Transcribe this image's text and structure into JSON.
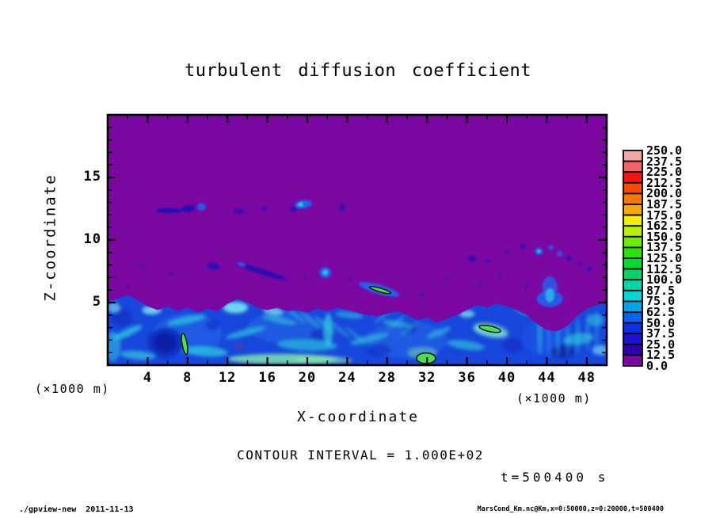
{
  "app": {
    "footer_left": "./gpview-new  2011-11-13",
    "footer_right": "MarsCond_Km.nc@Km,x=0:50000,z=0:20000,t=500400"
  },
  "chart_data": {
    "type": "heatmap",
    "title": "turbulent diffusion coefficient",
    "xlabel": "X-coordinate",
    "ylabel": "Z-coordinate",
    "x_axis_unit": "(×1000 m)",
    "y_axis_unit": "(×1000 m)",
    "contour_note": "CONTOUR INTERVAL = 1.000E+02",
    "time_note": "t=500400 s",
    "xlim": [
      0,
      50
    ],
    "zlim": [
      0,
      20
    ],
    "x_ticks_major": [
      4,
      8,
      12,
      16,
      20,
      24,
      28,
      32,
      36,
      40,
      44,
      48
    ],
    "x_tick_minor_step": 2,
    "z_ticks_major": [
      5,
      10,
      15
    ],
    "z_tick_minor_step": 1,
    "grid": false,
    "legend_position": "right-colorbar",
    "colorbar": {
      "min": 0.0,
      "max": 250.0,
      "step": 12.5,
      "labels_top_to_bottom": [
        "250.0",
        "237.5",
        "225.0",
        "212.5",
        "200.0",
        "187.5",
        "175.0",
        "162.5",
        "150.0",
        "137.5",
        "125.0",
        "112.5",
        "100.0",
        "87.5",
        "75.0",
        "62.5",
        "50.0",
        "37.5",
        "25.0",
        "12.5",
        "0.0"
      ],
      "cell_colors_bottom_to_top": [
        "#7a08a0",
        "#2c00aa",
        "#1a12d4",
        "#0830e8",
        "#0066f2",
        "#00a2ea",
        "#00d6d6",
        "#00d6aa",
        "#00d464",
        "#00dc28",
        "#28e400",
        "#6cec00",
        "#b4f000",
        "#f0f000",
        "#f8a800",
        "#f87800",
        "#f84a00",
        "#f81414",
        "#f86262",
        "#f8a4a4"
      ]
    },
    "palette": {
      "purple": "#7a08a0",
      "layer_base": "#1747dc",
      "blue": "#1e64ee",
      "blue2": "#2f86ee",
      "cyan": "#2fd4de",
      "cyan2": "#7deef0",
      "dark": "#0b28c0",
      "dark2": "#0a1a9e",
      "navy": "#1c10b8",
      "green": "#46e24e",
      "green2": "#86efa6",
      "red": "#c22727",
      "ink": "#101010",
      "frame": "#000000"
    },
    "layer_boundary_z": [
      5.1,
      5.3,
      5.6,
      5.2,
      4.7,
      4.4,
      4.7,
      4.3,
      4.6,
      4.2,
      4.5,
      4.3,
      4.9,
      5.3,
      5.0,
      4.6,
      4.4,
      4.6,
      4.3,
      4.4,
      4.2,
      4.5,
      4.3,
      4.6,
      4.4,
      4.2,
      4.0,
      3.9,
      4.1,
      4.3,
      4.0,
      3.6,
      3.8,
      3.4,
      3.7,
      4.0,
      4.4,
      4.8,
      4.6,
      4.9,
      4.7,
      4.4,
      4.0,
      3.3,
      2.8,
      2.7,
      3.1,
      3.9,
      4.5,
      4.8,
      5.0
    ],
    "features": {
      "layer_texture": [
        [
          8,
          2.5,
          7,
          3.2,
          0,
          "blue2",
          0.3
        ],
        [
          18,
          3,
          8,
          2.6,
          0,
          "blue2",
          0.28
        ],
        [
          30,
          2,
          8,
          3,
          0,
          "blue2",
          0.28
        ],
        [
          44,
          2.3,
          5,
          3,
          0,
          "blue",
          0.3
        ],
        [
          5.8,
          1.8,
          3.6,
          2.4,
          0,
          "dark",
          0.85
        ],
        [
          5.8,
          1.8,
          2.2,
          1.5,
          0,
          "dark2",
          0.8
        ],
        [
          1.4,
          3.8,
          2.2,
          1.4,
          20,
          "dark",
          0.65
        ],
        [
          10.5,
          3.2,
          1.3,
          0.9,
          0,
          "dark",
          0.55
        ],
        [
          21.2,
          2.4,
          1.9,
          1.1,
          -10,
          "dark",
          0.55
        ],
        [
          27.2,
          1.2,
          2.4,
          0.9,
          0,
          "dark",
          0.5
        ],
        [
          30.3,
          3.0,
          1.5,
          0.9,
          0,
          "dark",
          0.55
        ],
        [
          40.6,
          1.6,
          1.9,
          1.2,
          0,
          "dark",
          0.6
        ],
        [
          45.6,
          1.1,
          2.3,
          1.0,
          0,
          "dark2",
          0.75
        ],
        [
          44.9,
          3.4,
          1.7,
          1.1,
          0,
          "dark",
          0.55
        ],
        [
          0.5,
          1.5,
          1.6,
          2.4,
          0,
          "cyan",
          0.5
        ],
        [
          0.6,
          4.6,
          1.3,
          0.8,
          0,
          "cyan2",
          0.6
        ],
        [
          2.0,
          2.6,
          3.2,
          0.6,
          -25,
          "cyan",
          0.7
        ],
        [
          3.0,
          0.8,
          3.5,
          0.7,
          5,
          "cyan",
          0.65
        ],
        [
          4.4,
          4.4,
          1.9,
          0.7,
          0,
          "cyan2",
          0.8
        ],
        [
          7.9,
          3.6,
          4.0,
          0.6,
          -12,
          "cyan",
          0.65
        ],
        [
          9.8,
          1.1,
          4.5,
          0.8,
          4,
          "cyan",
          0.7
        ],
        [
          12.8,
          4.6,
          2.5,
          0.9,
          0,
          "cyan2",
          0.85
        ],
        [
          13.8,
          2.6,
          4.2,
          0.55,
          -15,
          "cyan",
          0.6
        ],
        [
          16.6,
          4.3,
          2.0,
          0.6,
          8,
          "cyan2",
          0.7
        ],
        [
          17.2,
          3.6,
          3.5,
          0.5,
          12,
          "cyan",
          0.55
        ],
        [
          20.0,
          1.6,
          6.0,
          0.9,
          2,
          "cyan",
          0.6
        ],
        [
          22.1,
          2.8,
          0.9,
          2.7,
          0,
          "cyan",
          0.7
        ],
        [
          24.2,
          4.0,
          2.8,
          0.5,
          6,
          "cyan",
          0.55
        ],
        [
          26.2,
          2.1,
          4.0,
          0.6,
          -14,
          "cyan",
          0.55
        ],
        [
          29.0,
          3.3,
          3.0,
          0.5,
          10,
          "cyan",
          0.5
        ],
        [
          31.5,
          1.0,
          3.0,
          0.9,
          0,
          "green2",
          0.45
        ],
        [
          33.2,
          2.6,
          2.6,
          0.5,
          -22,
          "cyan",
          0.55
        ],
        [
          35.9,
          1.6,
          3.8,
          0.7,
          8,
          "cyan",
          0.6
        ],
        [
          36.0,
          4.1,
          1.5,
          0.6,
          0,
          "cyan2",
          0.7
        ],
        [
          38.4,
          2.8,
          3.6,
          1.1,
          12,
          "green2",
          0.5
        ],
        [
          38.3,
          2.7,
          3.4,
          0.9,
          12,
          "cyan2",
          0.6
        ],
        [
          41.6,
          4.4,
          2.0,
          0.6,
          24,
          "cyan",
          0.55
        ],
        [
          47.2,
          2.1,
          3.0,
          0.9,
          -8,
          "cyan",
          0.6
        ],
        [
          48.9,
          3.6,
          1.7,
          1.0,
          0,
          "cyan",
          0.5
        ],
        [
          49.4,
          1.2,
          1.7,
          0.8,
          0,
          "cyan2",
          0.6
        ],
        [
          18.8,
          4.0,
          2.6,
          0.3,
          40,
          "cyan",
          0.45
        ],
        [
          20.3,
          3.6,
          2.6,
          0.3,
          40,
          "cyan",
          0.45
        ],
        [
          21.8,
          3.2,
          2.6,
          0.3,
          40,
          "cyan",
          0.45
        ],
        [
          23.3,
          2.8,
          2.6,
          0.3,
          40,
          "cyan",
          0.4
        ],
        [
          24.8,
          2.4,
          2.6,
          0.3,
          40,
          "cyan",
          0.4
        ],
        [
          27.6,
          3.9,
          2.4,
          0.28,
          -38,
          "cyan",
          0.4
        ],
        [
          28.9,
          3.4,
          2.4,
          0.28,
          -38,
          "cyan",
          0.4
        ],
        [
          30.2,
          2.9,
          2.4,
          0.28,
          -38,
          "cyan",
          0.35
        ],
        [
          43.3,
          2.6,
          0.4,
          3.6,
          0,
          "cyan",
          0.5
        ],
        [
          44.2,
          2.4,
          0.35,
          3.4,
          0,
          "blue2",
          0.55
        ],
        [
          45.1,
          2.2,
          0.3,
          3.0,
          0,
          "cyan",
          0.45
        ],
        [
          46.1,
          2.1,
          0.3,
          2.6,
          0,
          "cyan",
          0.4
        ],
        [
          47.1,
          2.4,
          0.32,
          3.0,
          0,
          "cyan",
          0.45
        ],
        [
          48.1,
          2.7,
          0.32,
          3.2,
          0,
          "cyan",
          0.4
        ],
        [
          49.0,
          2.9,
          0.32,
          3.0,
          0,
          "cyan",
          0.35
        ],
        [
          17.5,
          0.5,
          11.0,
          0.8,
          0,
          "green2",
          0.8
        ],
        [
          21.5,
          0.4,
          6.0,
          0.6,
          0,
          "green2",
          0.6
        ],
        [
          13.2,
          1.55,
          0.9,
          0.16,
          0,
          "red",
          0.85
        ]
      ],
      "upper_blobs": [
        [
          6.2,
          12.35,
          2.8,
          0.4,
          0,
          "navy",
          0.95
        ],
        [
          8.1,
          12.5,
          1.3,
          0.55,
          0,
          "navy",
          0.9
        ],
        [
          9.4,
          12.65,
          0.9,
          0.6,
          0,
          "blue",
          0.85
        ],
        [
          13.2,
          12.3,
          1.2,
          0.35,
          0,
          "navy",
          0.65
        ],
        [
          15.7,
          12.5,
          0.6,
          0.35,
          0,
          "navy",
          0.65
        ],
        [
          18.6,
          12.45,
          0.7,
          0.4,
          0,
          "navy",
          0.8
        ],
        [
          19.6,
          12.85,
          1.7,
          0.65,
          -8,
          "blue",
          1
        ],
        [
          19.4,
          12.85,
          0.7,
          0.3,
          -8,
          "cyan",
          0.95
        ],
        [
          19.6,
          12.88,
          0.22,
          0.14,
          0,
          "ink",
          0.9
        ],
        [
          23.5,
          12.6,
          0.5,
          0.55,
          0,
          "navy",
          0.85
        ],
        [
          0.8,
          7.0,
          0.4,
          0.25,
          0,
          "navy",
          0.5
        ],
        [
          2.1,
          6.3,
          0.3,
          0.2,
          0,
          "navy",
          0.4
        ],
        [
          3.4,
          7.9,
          0.5,
          0.3,
          0,
          "navy",
          0.55
        ],
        [
          6.4,
          7.3,
          0.4,
          0.3,
          0,
          "navy",
          0.5
        ],
        [
          10.6,
          7.9,
          1.3,
          0.5,
          5,
          "navy",
          0.8
        ],
        [
          15.5,
          7.45,
          5.2,
          0.42,
          18,
          "navy",
          0.9
        ],
        [
          13.4,
          8.05,
          0.8,
          0.3,
          18,
          "blue",
          0.9
        ],
        [
          21.8,
          7.4,
          1.2,
          0.85,
          0,
          "blue",
          0.95
        ],
        [
          21.8,
          7.4,
          0.5,
          0.4,
          0,
          "cyan",
          0.9
        ],
        [
          19.9,
          7.0,
          0.4,
          0.25,
          0,
          "navy",
          0.55
        ],
        [
          24.3,
          6.9,
          0.35,
          0.25,
          0,
          "navy",
          0.5
        ],
        [
          27.2,
          6.05,
          4.2,
          0.75,
          16,
          "blue",
          0.95
        ],
        [
          31.5,
          5.6,
          0.6,
          0.3,
          0,
          "navy",
          0.55
        ],
        [
          33.9,
          6.9,
          0.4,
          0.3,
          0,
          "navy",
          0.5
        ],
        [
          36.5,
          8.5,
          0.8,
          0.5,
          0,
          "navy",
          0.8
        ],
        [
          38.1,
          8.3,
          0.5,
          0.35,
          0,
          "navy",
          0.6
        ],
        [
          40.0,
          9.0,
          0.4,
          0.3,
          0,
          "navy",
          0.5
        ],
        [
          41.6,
          9.5,
          0.5,
          0.4,
          0,
          "navy",
          0.7
        ],
        [
          43.2,
          9.1,
          0.8,
          0.55,
          0,
          "blue",
          0.95
        ],
        [
          43.2,
          9.1,
          0.3,
          0.25,
          0,
          "cyan",
          0.9
        ],
        [
          44.4,
          9.4,
          0.5,
          0.4,
          0,
          "blue",
          0.8
        ],
        [
          45.3,
          8.9,
          0.6,
          0.45,
          0,
          "blue",
          0.85
        ],
        [
          46.2,
          8.55,
          0.5,
          0.4,
          0,
          "navy",
          0.8
        ],
        [
          47.3,
          8.1,
          0.4,
          0.3,
          0,
          "navy",
          0.6
        ],
        [
          48.3,
          7.7,
          0.5,
          0.35,
          0,
          "navy",
          0.7
        ],
        [
          39.3,
          7.2,
          0.3,
          0.25,
          0,
          "navy",
          0.5
        ],
        [
          37.3,
          6.4,
          0.4,
          0.25,
          0,
          "navy",
          0.5
        ],
        [
          42.0,
          6.3,
          0.3,
          0.4,
          0,
          "navy",
          0.5
        ],
        [
          44.3,
          6.3,
          1.5,
          1.6,
          0,
          "blue",
          0.8
        ],
        [
          44.3,
          5.3,
          2.6,
          1.3,
          0,
          "blue",
          0.9
        ],
        [
          44.3,
          5.6,
          0.9,
          1.1,
          0,
          "cyan",
          0.65
        ]
      ],
      "outlined_contours": [
        [
          7.7,
          1.7,
          0.5,
          1.7,
          -10
        ],
        [
          38.3,
          2.9,
          2.2,
          0.45,
          12
        ],
        [
          27.3,
          6.0,
          2.2,
          0.3,
          16
        ],
        [
          31.9,
          0.55,
          1.9,
          0.85,
          0
        ]
      ]
    }
  }
}
